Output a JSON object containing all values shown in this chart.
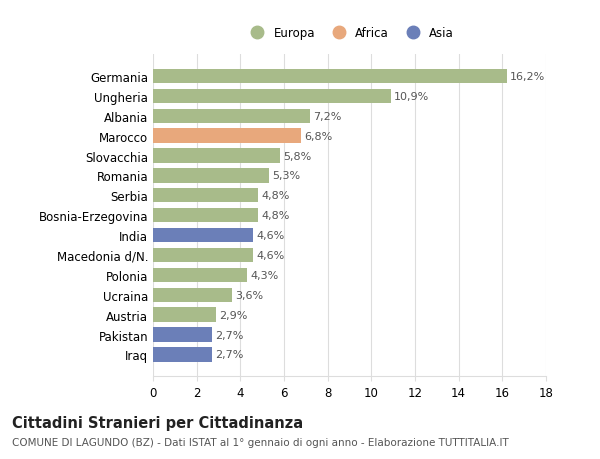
{
  "categories": [
    "Germania",
    "Ungheria",
    "Albania",
    "Marocco",
    "Slovacchia",
    "Romania",
    "Serbia",
    "Bosnia-Erzegovina",
    "India",
    "Macedonia d/N.",
    "Polonia",
    "Ucraina",
    "Austria",
    "Pakistan",
    "Iraq"
  ],
  "values": [
    16.2,
    10.9,
    7.2,
    6.8,
    5.8,
    5.3,
    4.8,
    4.8,
    4.6,
    4.6,
    4.3,
    3.6,
    2.9,
    2.7,
    2.7
  ],
  "labels": [
    "16,2%",
    "10,9%",
    "7,2%",
    "6,8%",
    "5,8%",
    "5,3%",
    "4,8%",
    "4,8%",
    "4,6%",
    "4,6%",
    "4,3%",
    "3,6%",
    "2,9%",
    "2,7%",
    "2,7%"
  ],
  "continents": [
    "Europa",
    "Europa",
    "Europa",
    "Africa",
    "Europa",
    "Europa",
    "Europa",
    "Europa",
    "Asia",
    "Europa",
    "Europa",
    "Europa",
    "Europa",
    "Asia",
    "Asia"
  ],
  "colors": {
    "Europa": "#a8bb8a",
    "Africa": "#e8a87c",
    "Asia": "#6b7fb8"
  },
  "xlim": [
    0,
    18
  ],
  "xticks": [
    0,
    2,
    4,
    6,
    8,
    10,
    12,
    14,
    16,
    18
  ],
  "title": "Cittadini Stranieri per Cittadinanza",
  "subtitle": "COMUNE DI LAGUNDO (BZ) - Dati ISTAT al 1° gennaio di ogni anno - Elaborazione TUTTITALIA.IT",
  "bg_color": "#ffffff",
  "grid_color": "#dddddd",
  "bar_height": 0.72,
  "label_fontsize": 8.0,
  "tick_fontsize": 8.5,
  "title_fontsize": 10.5,
  "subtitle_fontsize": 7.5
}
